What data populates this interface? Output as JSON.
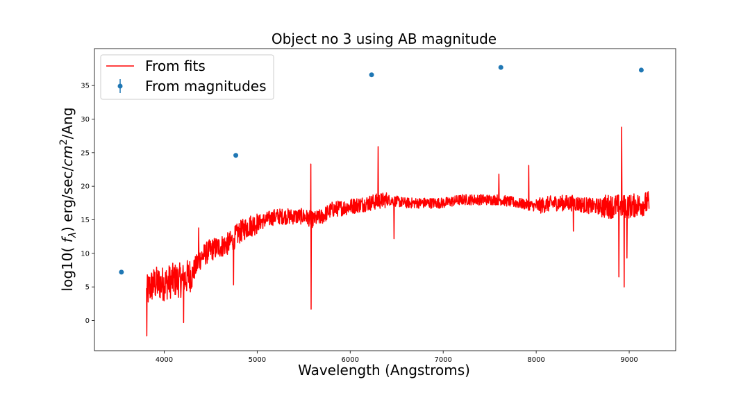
{
  "chart_data": {
    "type": "line",
    "title": "Object no 3 using AB magnitude",
    "xlabel": "Wavelength (Angstroms)",
    "ylabel_parts": [
      "log10( ",
      "f",
      "λ",
      ") erg/sec/",
      "cm",
      "2",
      "/Ang"
    ],
    "xlim": [
      3250,
      9500
    ],
    "ylim": [
      -4.5,
      40.5
    ],
    "xticks": [
      4000,
      5000,
      6000,
      7000,
      8000,
      9000
    ],
    "yticks": [
      0,
      5,
      10,
      15,
      20,
      25,
      30,
      35
    ],
    "legend_position": "upper-left",
    "colors": {
      "fits": "#ff0000",
      "magnitudes": "#1f77b4"
    },
    "series": [
      {
        "name": "From fits",
        "kind": "line",
        "x_range": [
          3810,
          9215
        ],
        "trend_x": [
          3810,
          3850,
          3900,
          4000,
          4100,
          4200,
          4300,
          4400,
          4500,
          4600,
          4700,
          4800,
          4900,
          5000,
          5100,
          5200,
          5300,
          5400,
          5500,
          5600,
          5700,
          5800,
          6000,
          6200,
          6400,
          6600,
          6800,
          7000,
          7200,
          7400,
          7600,
          7800,
          8000,
          8200,
          8400,
          8600,
          8800,
          9000,
          9215
        ],
        "trend_y": [
          4,
          5,
          5.5,
          5.5,
          6,
          6,
          7,
          9.5,
          10.5,
          11,
          11.5,
          13,
          14,
          14.5,
          15,
          15.5,
          15.5,
          15.5,
          15.5,
          15,
          15.5,
          16.5,
          17,
          17.5,
          18,
          17.5,
          17.5,
          17.5,
          18,
          18,
          18,
          17.5,
          17,
          17.5,
          17.5,
          17,
          17,
          17,
          17.5
        ],
        "spikes": [
          {
            "x": 3812,
            "y": -2.3
          },
          {
            "x": 4210,
            "y": -0.3
          },
          {
            "x": 4370,
            "y": 13.8
          },
          {
            "x": 4745,
            "y": 5.3
          },
          {
            "x": 5577,
            "y": 23.3
          },
          {
            "x": 5580,
            "y": 1.7
          },
          {
            "x": 6300,
            "y": 25.9
          },
          {
            "x": 6470,
            "y": 12.2
          },
          {
            "x": 7600,
            "y": 21.8
          },
          {
            "x": 7920,
            "y": 23.1
          },
          {
            "x": 8400,
            "y": 13.3
          },
          {
            "x": 8890,
            "y": 6.5
          },
          {
            "x": 8920,
            "y": 28.8
          },
          {
            "x": 8945,
            "y": 5.0
          },
          {
            "x": 8975,
            "y": 9.3
          }
        ]
      },
      {
        "name": "From magnitudes",
        "kind": "scatter",
        "x": [
          3540,
          4770,
          6230,
          7620,
          9130
        ],
        "y": [
          7.2,
          24.6,
          36.6,
          37.7,
          37.3
        ]
      }
    ]
  }
}
